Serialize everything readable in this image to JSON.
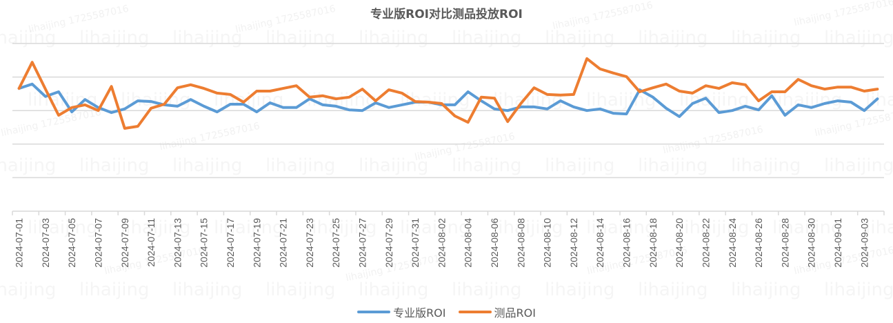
{
  "watermark": {
    "name_text": "lihaijing",
    "id_text": "lihaijing 1725587016"
  },
  "colors": {
    "series_blue": "#5B9BD5",
    "series_orange": "#ED7D31",
    "grid": "#D9D9D9",
    "text": "#595959"
  },
  "legend": {
    "items": [
      {
        "label": "专业版ROI",
        "color": "#5B9BD5"
      },
      {
        "label": "测品ROI",
        "color": "#ED7D31"
      }
    ]
  },
  "chart_data": {
    "type": "line",
    "title": "专业版ROI对比测品投放ROI",
    "xlabel": "",
    "ylabel": "",
    "ylim": [
      0,
      5
    ],
    "y_gridlines": [
      1,
      2,
      3,
      4,
      5
    ],
    "y_tick_labels_visible": false,
    "grid": true,
    "legend_position": "bottom",
    "x": [
      "2024-07-01",
      "2024-07-02",
      "2024-07-03",
      "2024-07-04",
      "2024-07-05",
      "2024-07-06",
      "2024-07-07",
      "2024-07-08",
      "2024-07-09",
      "2024-07-10",
      "2024-07-11",
      "2024-07-12",
      "2024-07-13",
      "2024-07-14",
      "2024-07-15",
      "2024-07-16",
      "2024-07-17",
      "2024-07-18",
      "2024-07-19",
      "2024-07-20",
      "2024-07-21",
      "2024-07-22",
      "2024-07-23",
      "2024-07-24",
      "2024-07-25",
      "2024-07-26",
      "2024-07-27",
      "2024-07-28",
      "2024-07-29",
      "2024-07-30",
      "2024-07-31",
      "2024-08-01",
      "2024-08-02",
      "2024-08-03",
      "2024-08-04",
      "2024-08-05",
      "2024-08-06",
      "2024-08-07",
      "2024-08-08",
      "2024-08-09",
      "2024-08-10",
      "2024-08-11",
      "2024-08-12",
      "2024-08-13",
      "2024-08-14",
      "2024-08-15",
      "2024-08-16",
      "2024-08-17",
      "2024-08-18",
      "2024-08-19",
      "2024-08-20",
      "2024-08-21",
      "2024-08-22",
      "2024-08-23",
      "2024-08-24",
      "2024-08-25",
      "2024-08-26",
      "2024-08-27",
      "2024-08-28",
      "2024-08-29",
      "2024-08-30",
      "2024-08-31",
      "2024-09-01",
      "2024-09-02",
      "2024-09-03",
      "2024-09-04"
    ],
    "x_tick_labels": [
      "2024-07-01",
      "2024-07-03",
      "2024-07-05",
      "2024-07-07",
      "2024-07-09",
      "2024-07-11",
      "2024-07-13",
      "2024-07-15",
      "2024-07-17",
      "2024-07-19",
      "2024-07-21",
      "2024-07-23",
      "2024-07-25",
      "2024-07-27",
      "2024-07-29",
      "2024-07-31",
      "2024-08-02",
      "2024-08-04",
      "2024-08-06",
      "2024-08-08",
      "2024-08-10",
      "2024-08-12",
      "2024-08-14",
      "2024-08-16",
      "2024-08-18",
      "2024-08-20",
      "2024-08-22",
      "2024-08-24",
      "2024-08-26",
      "2024-08-28",
      "2024-08-30",
      "2024-09-01",
      "2024-09-03"
    ],
    "series": [
      {
        "name": "专业版ROI",
        "color": "#5B9BD5",
        "values": [
          3.66,
          3.79,
          3.42,
          3.56,
          2.96,
          3.33,
          3.09,
          2.94,
          3.05,
          3.29,
          3.27,
          3.17,
          3.13,
          3.33,
          3.13,
          2.96,
          3.19,
          3.19,
          2.96,
          3.23,
          3.09,
          3.09,
          3.35,
          3.17,
          3.13,
          3.02,
          3.0,
          3.23,
          3.09,
          3.17,
          3.25,
          3.25,
          3.17,
          3.17,
          3.56,
          3.29,
          3.05,
          3.0,
          3.11,
          3.11,
          3.05,
          3.29,
          3.11,
          3.0,
          3.05,
          2.92,
          2.9,
          3.62,
          3.4,
          3.07,
          2.82,
          3.21,
          3.37,
          2.94,
          3.0,
          3.13,
          3.02,
          3.44,
          2.86,
          3.17,
          3.09,
          3.21,
          3.29,
          3.25,
          3.0,
          3.35
        ]
      },
      {
        "name": "测品ROI",
        "color": "#ED7D31",
        "values": [
          3.66,
          4.44,
          3.64,
          2.86,
          3.09,
          3.17,
          3.0,
          3.72,
          2.47,
          2.53,
          3.07,
          3.19,
          3.68,
          3.77,
          3.66,
          3.52,
          3.48,
          3.25,
          3.58,
          3.58,
          3.66,
          3.74,
          3.4,
          3.44,
          3.35,
          3.4,
          3.64,
          3.29,
          3.62,
          3.52,
          3.27,
          3.25,
          3.21,
          2.84,
          2.65,
          3.4,
          3.37,
          2.67,
          3.21,
          3.68,
          3.48,
          3.46,
          3.48,
          4.55,
          4.24,
          4.12,
          4.01,
          3.56,
          3.68,
          3.79,
          3.58,
          3.52,
          3.74,
          3.66,
          3.83,
          3.77,
          3.29,
          3.56,
          3.56,
          3.93,
          3.74,
          3.64,
          3.7,
          3.7,
          3.58,
          3.64
        ]
      }
    ]
  }
}
